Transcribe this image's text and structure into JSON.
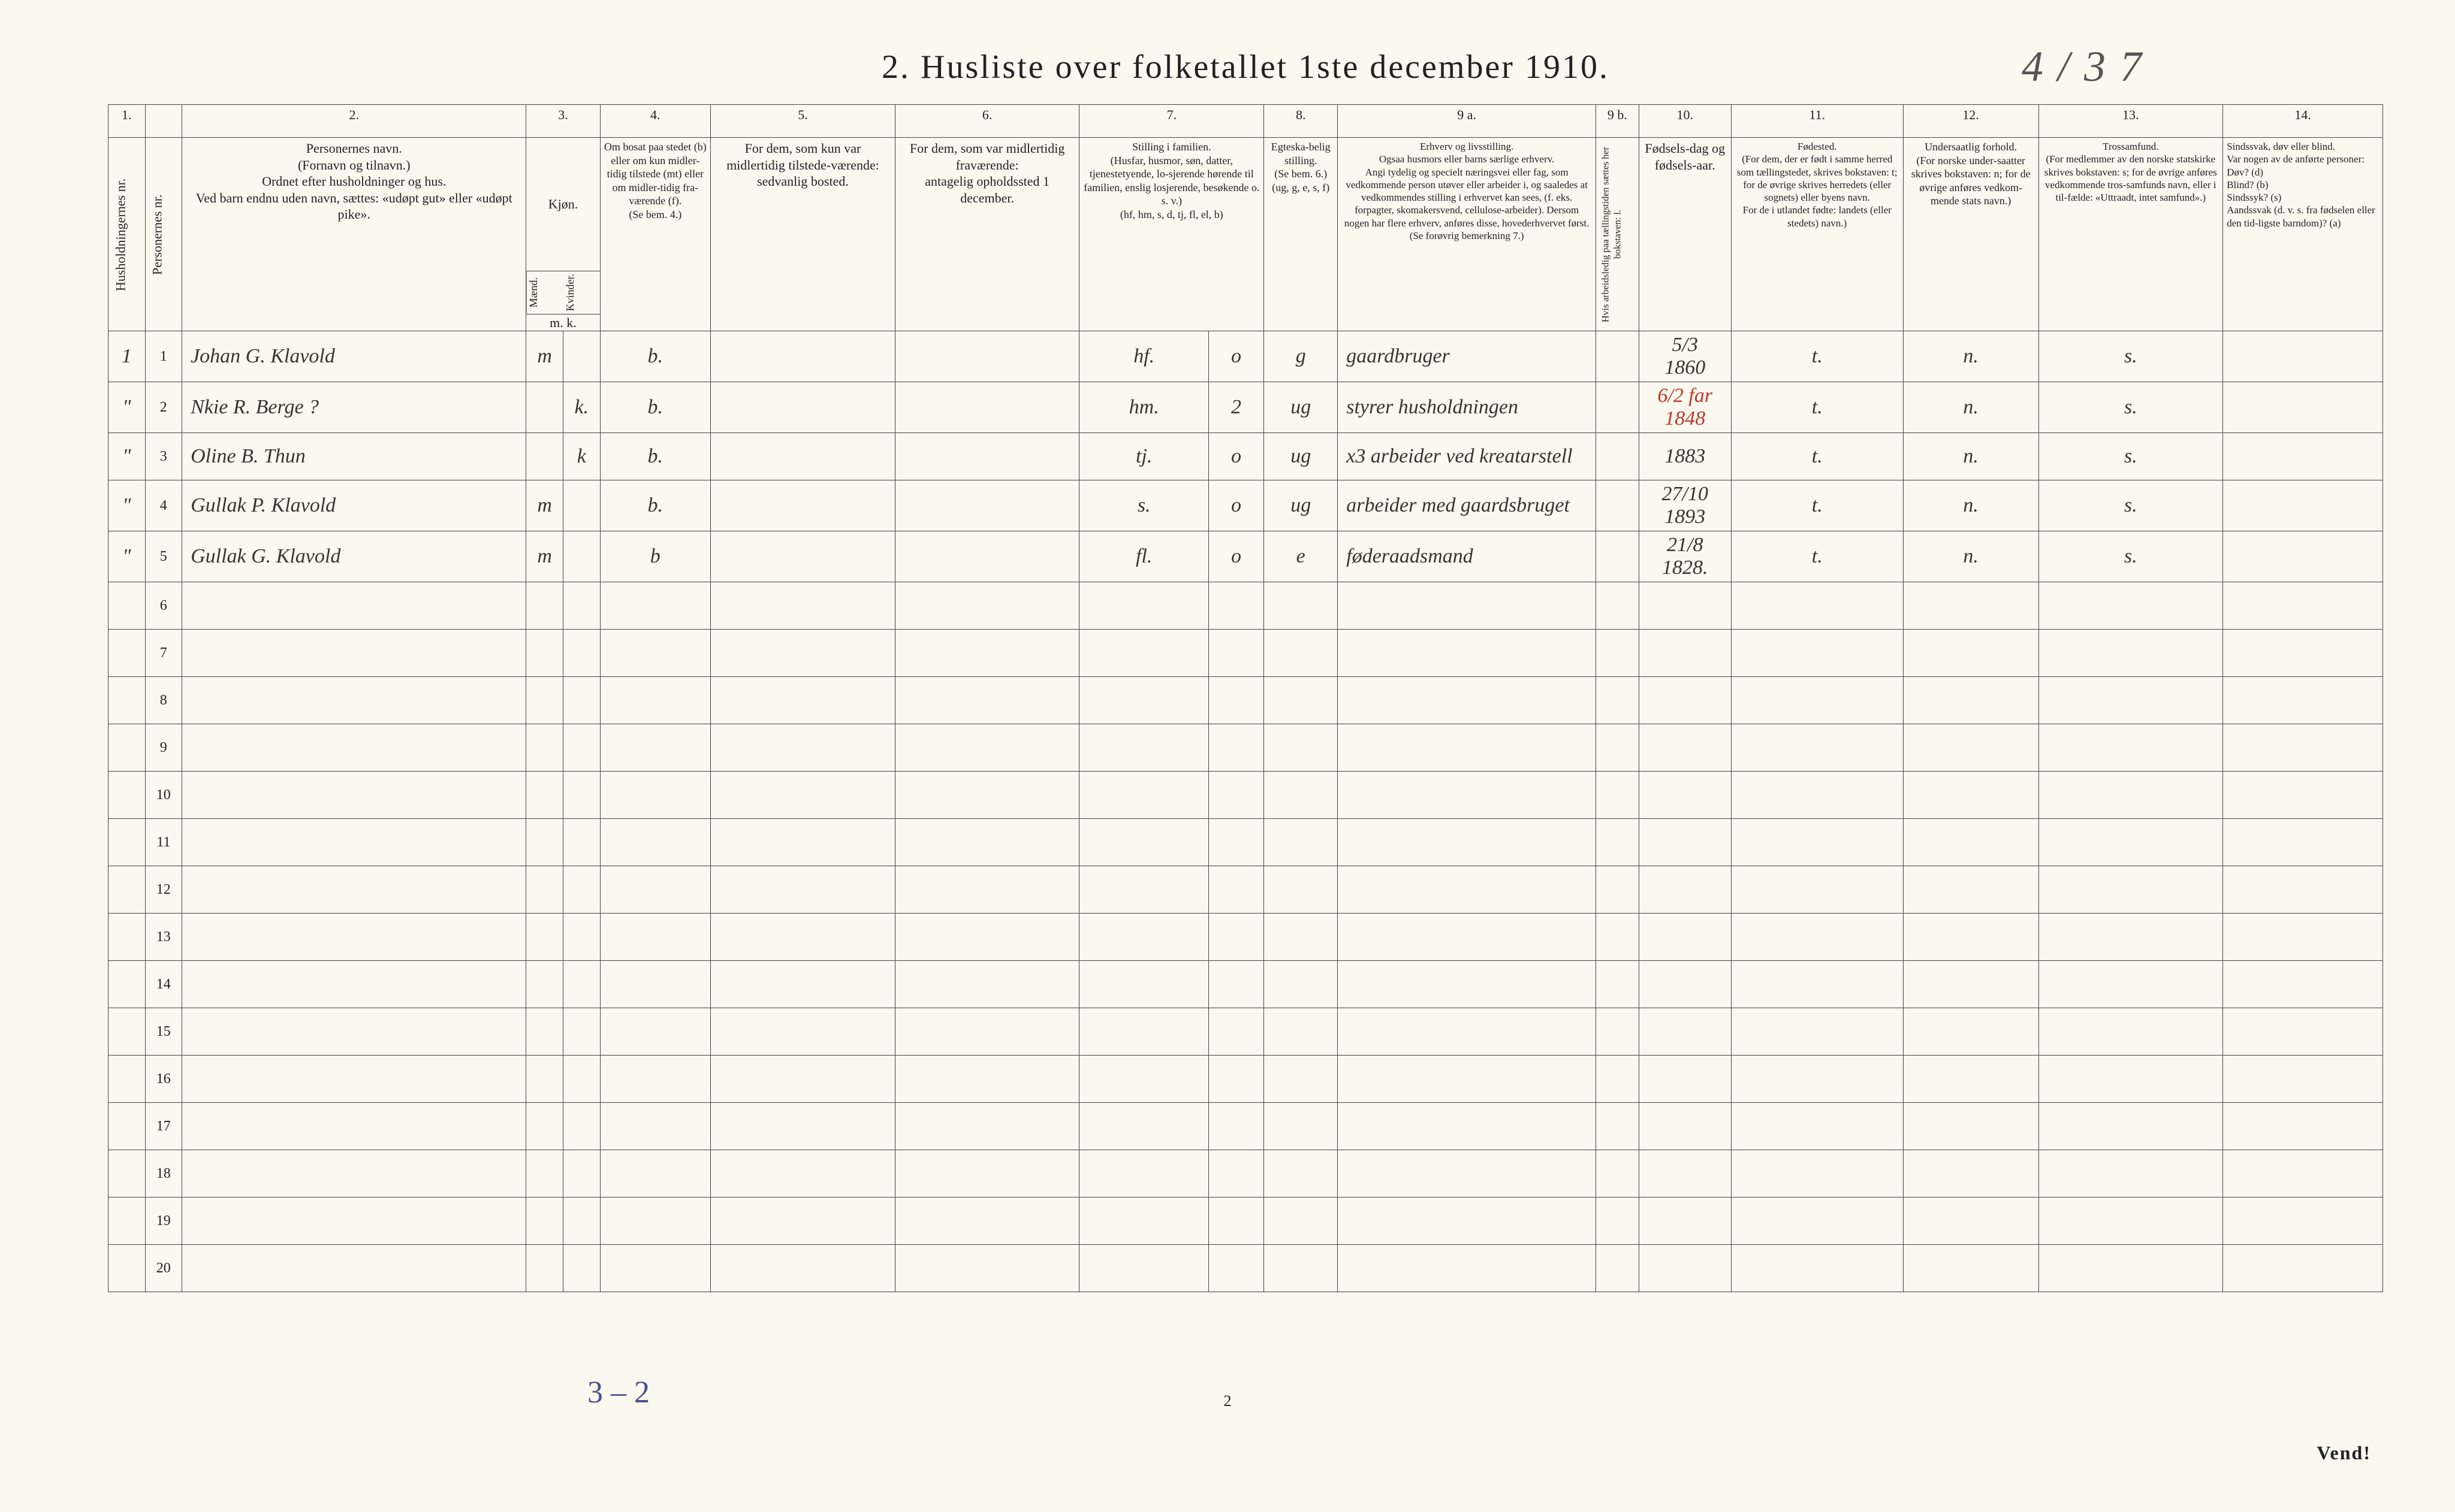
{
  "title": "2.  Husliste over folketallet 1ste december 1910.",
  "handwritten_id": "4 / 3 7",
  "col_numbers": [
    "1.",
    "",
    "2.",
    "3.",
    "",
    "4.",
    "5.",
    "6.",
    "7.",
    "",
    "8.",
    "9 a.",
    "9 b.",
    "10.",
    "11.",
    "12.",
    "13.",
    "14."
  ],
  "headers": {
    "h1": "Husholdningernes nr.",
    "h2": "Personernes nr.",
    "h3": "Personernes navn.\n(Fornavn og tilnavn.)\nOrdnet efter husholdninger og hus.\nVed barn endnu uden navn, sættes: «udøpt gut» eller «udøpt pike».",
    "h4": "Kjøn.",
    "h4m": "Mænd.",
    "h4k": "Kvinder.",
    "h4mk": "m.  k.",
    "h5": "Om bosat paa stedet (b) eller om kun midler-tidig tilstede (mt) eller om midler-tidig fra-værende (f).\n(Se bem. 4.)",
    "h6": "For dem, som kun var midlertidig tilstede-værende:\nsedvanlig bosted.",
    "h7": "For dem, som var midlertidig fraværende:\nantagelig opholdssted 1 december.",
    "h8": "Stilling i familien.\n(Husfar, husmor, søn, datter, tjenestetyende, lo-sjerende hørende til familien, enslig losjerende, besøkende o. s. v.)\n(hf, hm, s, d, tj, fl, el, b)",
    "h9": "Egteska-belig stilling.\n(Se bem. 6.)\n(ug, g, e, s, f)",
    "h10": "Erhverv og livsstilling.\nOgsaa husmors eller barns særlige erhverv.\nAngi tydelig og specielt næringsvei eller fag, som vedkommende person utøver eller arbeider i, og saaledes at vedkommendes stilling i erhvervet kan sees, (f. eks. forpagter, skomakersvend, cellulose-arbeider). Dersom nogen har flere erhverv, anføres disse, hovederhvervet først.\n(Se forøvrig bemerkning 7.)",
    "h11": "Hvis arbeidsledig paa tællingstiden sættes her bokstaven: l.",
    "h12": "Fødsels-dag og fødsels-aar.",
    "h13": "Fødested.\n(For dem, der er født i samme herred som tællingstedet, skrives bokstaven: t; for de øvrige skrives herredets (eller sognets) eller byens navn.\nFor de i utlandet fødte: landets (eller stedets) navn.)",
    "h14": "Undersaatlig forhold.\n(For norske under-saatter skrives bokstaven: n; for de øvrige anføres vedkom-mende stats navn.)",
    "h15": "Trossamfund.\n(For medlemmer av den norske statskirke skrives bokstaven: s; for de øvrige anføres vedkommende tros-samfunds navn, eller i til-fælde: «Uttraadt, intet samfund».)",
    "h16": "Sindssvak, døv eller blind.\nVar nogen av de anførte personer:\nDøv?          (d)\nBlind?        (b)\nSindssyk? (s)\nAandssvak (d. v. s. fra fødselen eller den tid-ligste barndom)? (a)"
  },
  "rows": [
    {
      "hh": "1",
      "pn": "1",
      "name": "Johan   G.   Klavold",
      "m": "m",
      "k": "",
      "bstat": "b.",
      "mt": "",
      "fr": "",
      "fam": "hf.",
      "o": "o",
      "eg": "g",
      "erh": "gaardbruger",
      "al": "",
      "dob": "5/3\n1860",
      "fsted": "t.",
      "und": "n.",
      "tro": "s.",
      "sind": ""
    },
    {
      "hh": "\"",
      "pn": "2",
      "name": "Nkie   R.   Berge ?",
      "m": "",
      "k": "k.",
      "bstat": "b.",
      "mt": "",
      "fr": "",
      "fam": "hm.",
      "o": "2",
      "eg": "ug",
      "erh": "styrer husholdningen",
      "al": "",
      "dob": "",
      "dob_red": "6/2 far  1848",
      "fsted": "t.",
      "und": "n.",
      "tro": "s.",
      "sind": ""
    },
    {
      "hh": "\"",
      "pn": "3",
      "name": "Oline   B.   Thun",
      "m": "",
      "k": "k",
      "bstat": "b.",
      "mt": "",
      "fr": "",
      "fam": "tj.",
      "o": "o",
      "eg": "ug",
      "erh": "x3 arbeider ved kreatarstell",
      "al": "",
      "dob": "1883",
      "fsted": "t.",
      "und": "n.",
      "tro": "s.",
      "sind": ""
    },
    {
      "hh": "\"",
      "pn": "4",
      "name": "Gullak   P.   Klavold",
      "m": "m",
      "k": "",
      "bstat": "b.",
      "mt": "",
      "fr": "",
      "fam": "s.",
      "o": "o",
      "eg": "ug",
      "erh": "arbeider med gaardsbruget",
      "al": "",
      "dob": "27/10\n1893",
      "fsted": "t.",
      "und": "n.",
      "tro": "s.",
      "sind": ""
    },
    {
      "hh": "\"",
      "pn": "5",
      "name": "Gullak   G.   Klavold",
      "m": "m",
      "k": "",
      "bstat": "b",
      "mt": "",
      "fr": "",
      "fam": "fl.",
      "o": "o",
      "eg": "e",
      "erh": "føderaadsmand",
      "al": "",
      "dob": "21/8\n1828.",
      "fsted": "t.",
      "und": "n.",
      "tro": "s.",
      "sind": ""
    }
  ],
  "empty_row_numbers": [
    "6",
    "7",
    "8",
    "9",
    "10",
    "11",
    "12",
    "13",
    "14",
    "15",
    "16",
    "17",
    "18",
    "19",
    "20"
  ],
  "footer_left": "3 – 2",
  "footer_pagenum": "2",
  "footer_vend": "Vend!",
  "colors": {
    "paper": "#fbf8ef",
    "ink": "#222222",
    "handwriting": "#3a342e",
    "red": "#c0392b",
    "blue_pencil": "#4a4f8a"
  }
}
